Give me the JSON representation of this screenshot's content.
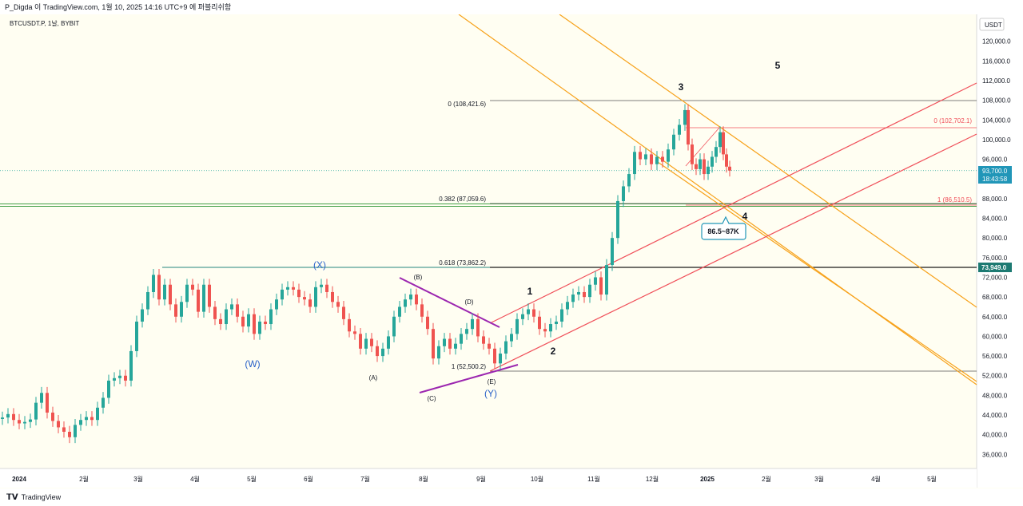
{
  "header": {
    "attribution": "P_Digda 이 TradingView.com, 1월 10, 2025 14:16 UTC+9 에 퍼블리쉬함",
    "symbol": "BTCUSDT.P, 1날, BYBIT",
    "currency": "USDT"
  },
  "footer": {
    "brand": "TradingView",
    "logo": "tradingview-logo-icon"
  },
  "colors": {
    "up": "#26a69a",
    "down": "#ef5350",
    "orange": "#f7a21b",
    "red": "#f0505a",
    "purple": "#9c27b0",
    "green": "#43a047",
    "teal_line": "#26867f",
    "fib_gray": "#555555",
    "wave_blue": "#2a62c9",
    "price_badge": "#2196b8",
    "level_badge": "#1d7a72"
  },
  "chart_data": {
    "type": "candlestick",
    "symbol": "BTCUSDT.P",
    "timeframe": "1날",
    "exchange": "BYBIT",
    "x_ticks": [
      "2024",
      "2월",
      "3월",
      "4월",
      "5월",
      "6월",
      "7월",
      "8월",
      "9월",
      "10월",
      "11월",
      "12월",
      "2025",
      "2월",
      "3월",
      "4월",
      "5월"
    ],
    "y_ticks": [
      "120,000.0",
      "116,000.0",
      "112,000.0",
      "108,000.0",
      "104,000.0",
      "100,000.0",
      "96,000.0",
      "92,000.0",
      "88,000.0",
      "84,000.0",
      "80,000.0",
      "76,000.0",
      "72,000.0",
      "68,000.0",
      "64,000.0",
      "60,000.0",
      "56,000.0",
      "52,000.0",
      "48,000.0",
      "44,000.0",
      "40,000.0",
      "36,000.0"
    ],
    "ylim": [
      32000,
      124000
    ],
    "current_price": {
      "value": "93,700.0",
      "countdown": "18:43:58"
    },
    "level_badge": "73,949.0",
    "closes": [
      [
        0,
        43500
      ],
      [
        7,
        44200
      ],
      [
        14,
        43000
      ],
      [
        21,
        42300
      ],
      [
        28,
        42600
      ],
      [
        35,
        43100
      ],
      [
        42,
        46500
      ],
      [
        49,
        48500
      ],
      [
        56,
        44500
      ],
      [
        63,
        42800
      ],
      [
        70,
        41500
      ],
      [
        77,
        40600
      ],
      [
        84,
        39500
      ],
      [
        91,
        42000
      ],
      [
        98,
        43000
      ],
      [
        105,
        43600
      ],
      [
        112,
        43000
      ],
      [
        119,
        45500
      ],
      [
        126,
        47500
      ],
      [
        133,
        51000
      ],
      [
        140,
        51500
      ],
      [
        147,
        52000
      ],
      [
        154,
        51000
      ],
      [
        161,
        57000
      ],
      [
        168,
        63000
      ],
      [
        175,
        65500
      ],
      [
        182,
        69000
      ],
      [
        189,
        72500
      ],
      [
        196,
        67500
      ],
      [
        203,
        70500
      ],
      [
        210,
        66500
      ],
      [
        217,
        64000
      ],
      [
        224,
        67000
      ],
      [
        231,
        70500
      ],
      [
        238,
        69500
      ],
      [
        245,
        65000
      ],
      [
        252,
        70500
      ],
      [
        259,
        66000
      ],
      [
        266,
        63500
      ],
      [
        273,
        62500
      ],
      [
        280,
        65500
      ],
      [
        287,
        66500
      ],
      [
        294,
        64000
      ],
      [
        301,
        62000
      ],
      [
        308,
        64500
      ],
      [
        315,
        60500
      ],
      [
        322,
        63000
      ],
      [
        329,
        62500
      ],
      [
        336,
        65500
      ],
      [
        343,
        67500
      ],
      [
        350,
        69500
      ],
      [
        357,
        70000
      ],
      [
        364,
        69500
      ],
      [
        371,
        68000
      ],
      [
        378,
        67500
      ],
      [
        385,
        66000
      ],
      [
        392,
        70000
      ],
      [
        399,
        70500
      ],
      [
        406,
        69000
      ],
      [
        413,
        67000
      ],
      [
        420,
        66000
      ],
      [
        427,
        63500
      ],
      [
        434,
        61000
      ],
      [
        441,
        60500
      ],
      [
        448,
        57500
      ],
      [
        455,
        59500
      ],
      [
        462,
        58000
      ],
      [
        469,
        56000
      ],
      [
        476,
        57500
      ],
      [
        483,
        60000
      ],
      [
        490,
        64000
      ],
      [
        497,
        66000
      ],
      [
        504,
        67500
      ],
      [
        511,
        68500
      ],
      [
        518,
        66500
      ],
      [
        525,
        64000
      ],
      [
        532,
        61500
      ],
      [
        539,
        55500
      ],
      [
        546,
        58000
      ],
      [
        553,
        59500
      ],
      [
        560,
        57500
      ],
      [
        567,
        58500
      ],
      [
        574,
        60500
      ],
      [
        581,
        61500
      ],
      [
        588,
        63500
      ],
      [
        595,
        60000
      ],
      [
        602,
        58500
      ],
      [
        609,
        57500
      ],
      [
        616,
        54500
      ],
      [
        623,
        56500
      ],
      [
        630,
        59000
      ],
      [
        637,
        60500
      ],
      [
        644,
        63500
      ],
      [
        651,
        64500
      ],
      [
        658,
        65500
      ],
      [
        665,
        64000
      ],
      [
        672,
        61500
      ],
      [
        679,
        61000
      ],
      [
        686,
        62500
      ],
      [
        693,
        63000
      ],
      [
        700,
        65500
      ],
      [
        707,
        67000
      ],
      [
        714,
        68500
      ],
      [
        721,
        69000
      ],
      [
        728,
        68000
      ],
      [
        735,
        70500
      ],
      [
        742,
        72000
      ],
      [
        749,
        68500
      ],
      [
        756,
        74500
      ],
      [
        763,
        80000
      ],
      [
        770,
        87500
      ],
      [
        777,
        90500
      ],
      [
        784,
        93000
      ],
      [
        791,
        97500
      ],
      [
        798,
        96000
      ],
      [
        805,
        97000
      ],
      [
        812,
        95000
      ],
      [
        819,
        96500
      ],
      [
        826,
        95500
      ],
      [
        833,
        98000
      ],
      [
        840,
        101000
      ],
      [
        847,
        103000
      ],
      [
        854,
        106000
      ],
      [
        858,
        99000
      ],
      [
        863,
        95000
      ],
      [
        868,
        94000
      ],
      [
        873,
        96000
      ],
      [
        878,
        93000
      ],
      [
        883,
        94500
      ],
      [
        888,
        96500
      ],
      [
        893,
        98500
      ],
      [
        898,
        101500
      ],
      [
        902,
        97000
      ],
      [
        906,
        94500
      ],
      [
        910,
        93700
      ]
    ],
    "fib_levels": [
      {
        "label": "0 (108,421.6)",
        "value": 108421.6
      },
      {
        "label": "0.382 (87,059.6)",
        "value": 87059.6
      },
      {
        "label": "0.618 (73,862.2)",
        "value": 73862.2
      },
      {
        "label": "1 (52,500.2)",
        "value": 52500.2
      }
    ],
    "fib_levels_right": [
      {
        "label": "0 (102,702.1)",
        "value": 102702.1
      },
      {
        "label": "1 (86,510.5)",
        "value": 86510.5
      }
    ],
    "callout": "86.5~87K",
    "wave_labels": [
      {
        "text": "(X)",
        "style": "blue"
      },
      {
        "text": "(W)",
        "style": "blue"
      },
      {
        "text": "(Y)",
        "style": "blue"
      },
      {
        "text": "(A)",
        "style": "small"
      },
      {
        "text": "(B)",
        "style": "small"
      },
      {
        "text": "(C)",
        "style": "small"
      },
      {
        "text": "(D)",
        "style": "small"
      },
      {
        "text": "(E)",
        "style": "small"
      },
      {
        "text": "1",
        "style": "big"
      },
      {
        "text": "2",
        "style": "big"
      },
      {
        "text": "3",
        "style": "big"
      },
      {
        "text": "4",
        "style": "big"
      },
      {
        "text": "5",
        "style": "big"
      }
    ]
  }
}
